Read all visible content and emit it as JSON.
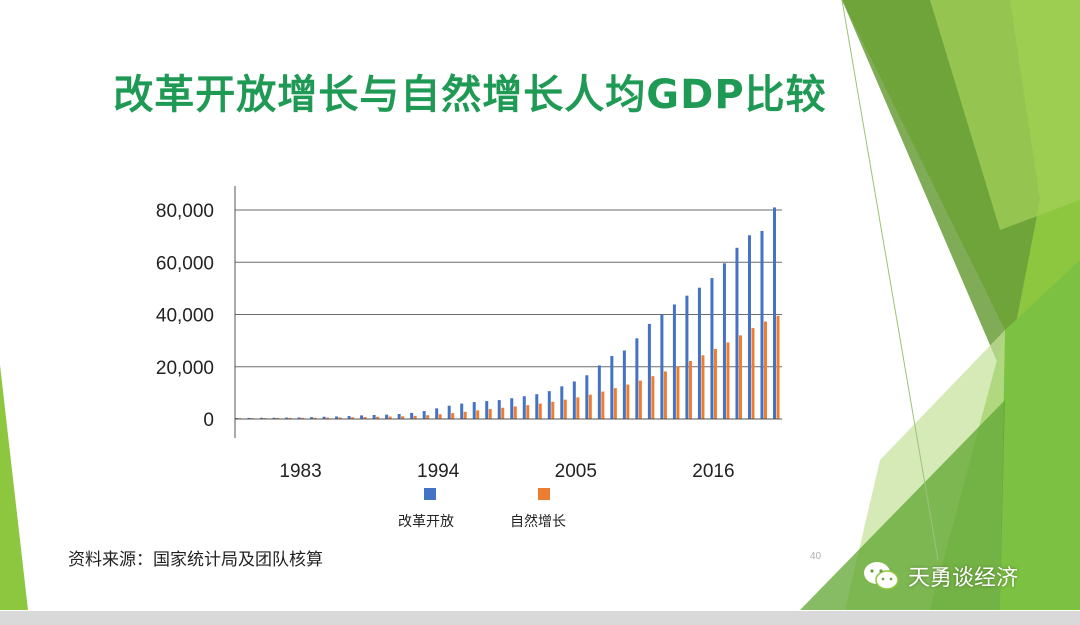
{
  "slide": {
    "title": "改革开放增长与自然增长人均GDP比较",
    "source": "资料来源：国家统计局及团队核算",
    "page_number": "40",
    "watermark": "天勇谈经济",
    "accent_color": "#1f9a55"
  },
  "chart_data": {
    "type": "bar",
    "title": "",
    "xlabel": "",
    "ylabel": "",
    "ylim": [
      0,
      80000
    ],
    "yticks": [
      0,
      20000,
      40000,
      60000,
      80000
    ],
    "ytick_labels": [
      "0",
      "20,000",
      "40,000",
      "60,000",
      "80,000"
    ],
    "xtick_labels": [
      "1983",
      "1994",
      "2005",
      "2016"
    ],
    "xtick_years": [
      1983,
      1994,
      2005,
      2016
    ],
    "grid": "horizontal",
    "legend_position": "bottom",
    "years": [
      1978,
      1979,
      1980,
      1981,
      1982,
      1983,
      1984,
      1985,
      1986,
      1987,
      1988,
      1989,
      1990,
      1991,
      1992,
      1993,
      1994,
      1995,
      1996,
      1997,
      1998,
      1999,
      2000,
      2001,
      2002,
      2003,
      2004,
      2005,
      2006,
      2007,
      2008,
      2009,
      2010,
      2011,
      2012,
      2013,
      2014,
      2015,
      2016,
      2017,
      2018,
      2019,
      2020,
      2021
    ],
    "series": [
      {
        "name": "改革开放",
        "color": "#4472c4",
        "values": [
          385,
          423,
          468,
          497,
          533,
          588,
          702,
          866,
          973,
          1123,
          1378,
          1536,
          1663,
          1912,
          2334,
          3027,
          4081,
          5091,
          5898,
          6481,
          6860,
          7229,
          7942,
          8717,
          9506,
          10666,
          12487,
          14368,
          16738,
          20505,
          24121,
          26222,
          30876,
          36403,
          40007,
          43852,
          47203,
          50251,
          53935,
          59592,
          65534,
          70328,
          72000,
          80976
        ]
      },
      {
        "name": "自然增长",
        "color": "#ed7d31",
        "values": [
          300,
          330,
          360,
          390,
          420,
          450,
          490,
          540,
          600,
          660,
          740,
          830,
          930,
          1040,
          1200,
          1450,
          1800,
          2250,
          2750,
          3300,
          3800,
          4300,
          4800,
          5300,
          5900,
          6600,
          7400,
          8300,
          9300,
          10500,
          11800,
          13200,
          14700,
          16400,
          18200,
          20100,
          22200,
          24400,
          26800,
          29300,
          32000,
          34800,
          37300,
          39500
        ]
      }
    ]
  }
}
